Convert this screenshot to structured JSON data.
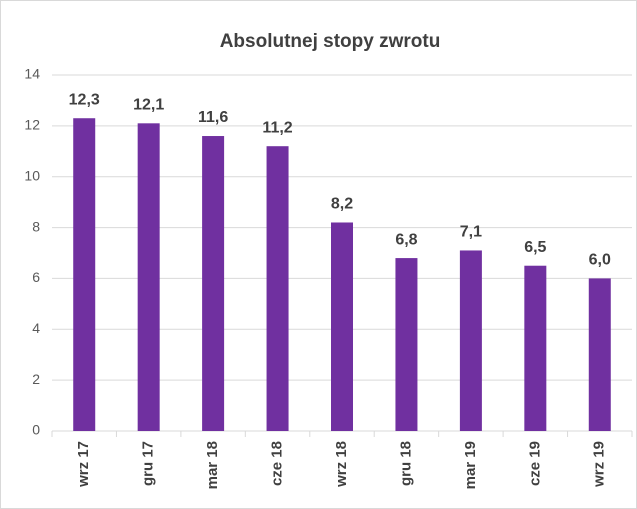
{
  "chart_data": {
    "type": "bar",
    "title": "Absolutnej stopy zwrotu",
    "categories": [
      "wrz 17",
      "gru 17",
      "mar 18",
      "cze 18",
      "wrz 18",
      "gru 18",
      "mar 19",
      "cze 19",
      "wrz 19"
    ],
    "values": [
      12.3,
      12.1,
      11.6,
      11.2,
      8.2,
      6.8,
      7.1,
      6.5,
      6.0
    ],
    "value_labels": [
      "12,3",
      "12,1",
      "11,6",
      "11,2",
      "8,2",
      "6,8",
      "7,1",
      "6,5",
      "6,0"
    ],
    "color": "#7030a0",
    "ylim": [
      0,
      14
    ],
    "yticks": [
      0,
      2,
      4,
      6,
      8,
      10,
      12,
      14
    ],
    "grid": true
  }
}
